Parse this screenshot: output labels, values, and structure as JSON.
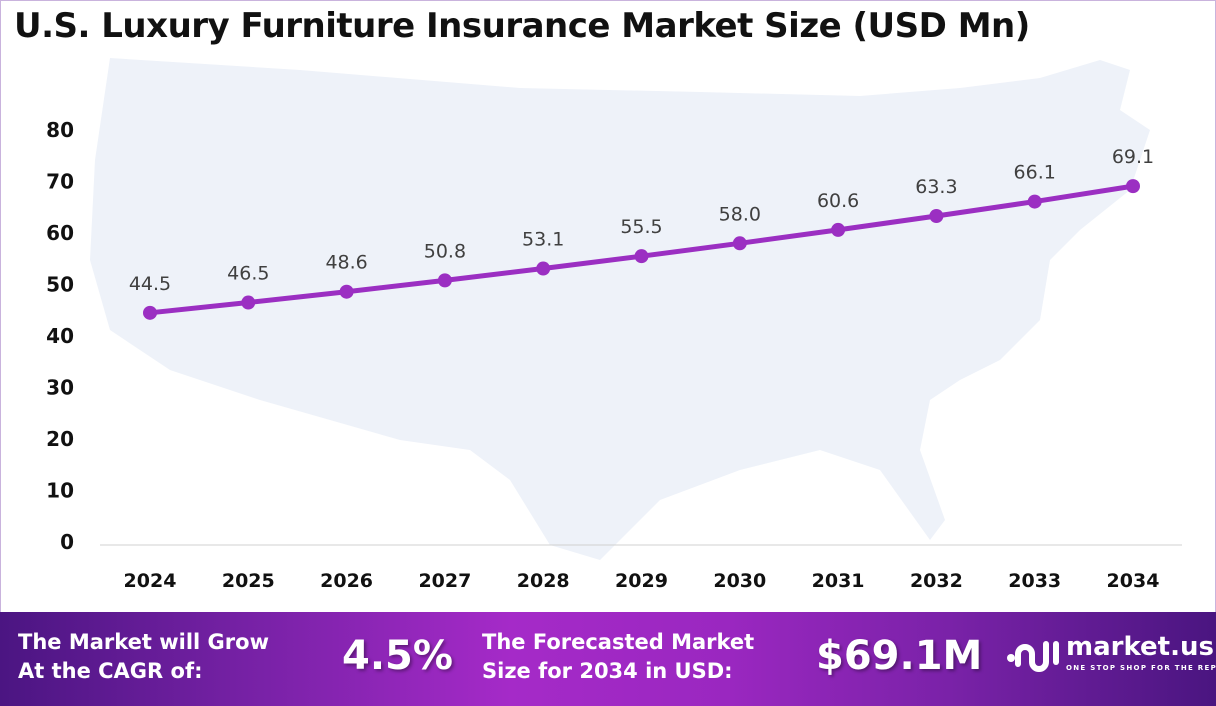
{
  "chart_data": {
    "type": "line",
    "title": "U.S. Luxury Furniture Insurance Market Size (USD Mn)",
    "categories": [
      "2024",
      "2025",
      "2026",
      "2027",
      "2028",
      "2029",
      "2030",
      "2031",
      "2032",
      "2033",
      "2034"
    ],
    "series": [
      {
        "values": [
          44.5,
          46.5,
          48.6,
          50.8,
          53.1,
          55.5,
          58.0,
          60.6,
          63.3,
          66.1,
          69.1
        ]
      }
    ],
    "data_labels": [
      "44.5",
      "46.5",
      "48.6",
      "50.8",
      "53.1",
      "55.5",
      "58.0",
      "60.6",
      "63.3",
      "66.1",
      "69.1"
    ],
    "yticks": [
      "0",
      "10",
      "20",
      "30",
      "40",
      "50",
      "60",
      "70",
      "80"
    ],
    "ylim": [
      0,
      80
    ],
    "grid": false,
    "line_color": "#9b2fc2",
    "background": "US map silhouette"
  },
  "footer": {
    "cagr_label_1": "The Market will Grow",
    "cagr_label_2": "At the CAGR of:",
    "cagr_value": "4.5%",
    "forecast_label_1": "The Forecasted Market",
    "forecast_label_2": "Size for 2034 in USD:",
    "forecast_value": "$69.1M",
    "logo_name": "market.us",
    "logo_tagline": "ONE STOP SHOP FOR THE REPORTS"
  }
}
